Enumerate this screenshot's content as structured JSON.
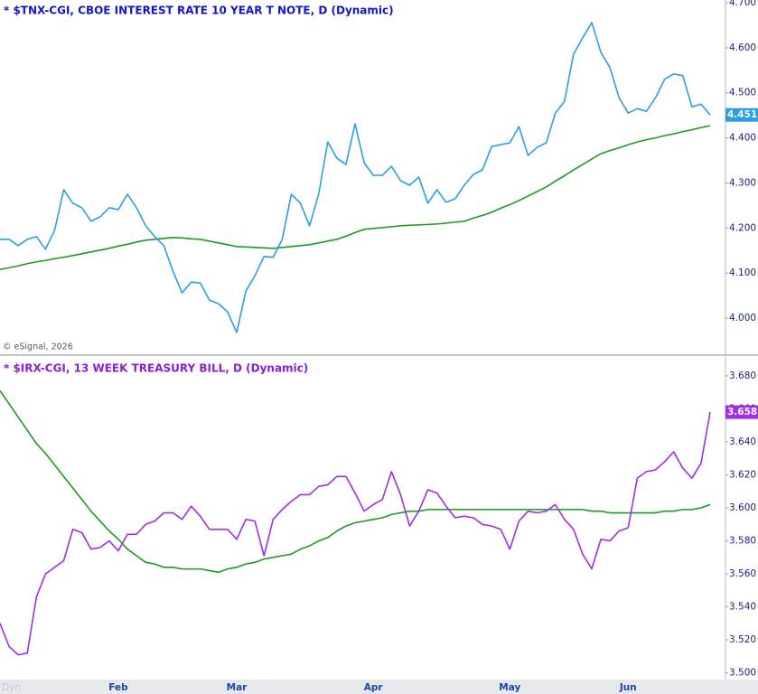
{
  "chart_data": [
    {
      "type": "line",
      "title": "* $TNX-CGI, CBOE INTEREST RATE 10 YEAR T NOTE, D (Dynamic)",
      "credit": "© eSignal, 2026",
      "ylim": [
        3.92,
        4.706
      ],
      "yticks": [
        {
          "value": 4.0,
          "label": "4.000"
        },
        {
          "value": 4.1,
          "label": "4.100"
        },
        {
          "value": 4.2,
          "label": "4.200"
        },
        {
          "value": 4.3,
          "label": "4.300"
        },
        {
          "value": 4.4,
          "label": "4.400"
        },
        {
          "value": 4.5,
          "label": "4.500"
        },
        {
          "value": 4.6,
          "label": "4.600"
        },
        {
          "value": 4.7,
          "label": "4.700"
        }
      ],
      "series": [
        {
          "color": "#2b9fe2",
          "tag": true,
          "values": [
            4.175,
            4.175,
            4.161,
            4.175,
            4.181,
            4.153,
            4.195,
            4.285,
            4.255,
            4.245,
            4.215,
            4.225,
            4.245,
            4.241,
            4.275,
            4.245,
            4.205,
            4.181,
            4.161,
            4.104,
            4.056,
            4.08,
            4.078,
            4.04,
            4.032,
            4.014,
            3.968,
            4.06,
            4.094,
            4.137,
            4.135,
            4.175,
            4.275,
            4.255,
            4.205,
            4.275,
            4.391,
            4.355,
            4.341,
            4.431,
            4.345,
            4.317,
            4.317,
            4.337,
            4.305,
            4.295,
            4.313,
            4.255,
            4.285,
            4.257,
            4.265,
            4.295,
            4.319,
            4.329,
            4.381,
            4.385,
            4.389,
            4.425,
            4.361,
            4.379,
            4.389,
            4.455,
            4.481,
            4.586,
            4.622,
            4.656,
            4.59,
            4.556,
            4.489,
            4.455,
            4.465,
            4.459,
            4.489,
            4.53,
            4.542,
            4.538,
            4.469,
            4.475,
            4.451
          ]
        },
        {
          "color": "#1e9a1e",
          "tag": false,
          "values": [
            4.108,
            4.112,
            4.116,
            4.121,
            4.125,
            4.128,
            4.132,
            4.135,
            4.139,
            4.143,
            4.147,
            4.151,
            4.155,
            4.16,
            4.164,
            4.169,
            4.173,
            4.175,
            4.177,
            4.179,
            4.178,
            4.176,
            4.175,
            4.171,
            4.167,
            4.163,
            4.159,
            4.158,
            4.157,
            4.156,
            4.155,
            4.157,
            4.159,
            4.161,
            4.163,
            4.167,
            4.171,
            4.175,
            4.182,
            4.19,
            4.197,
            4.199,
            4.201,
            4.203,
            4.205,
            4.206,
            4.207,
            4.208,
            4.209,
            4.211,
            4.213,
            4.215,
            4.222,
            4.228,
            4.235,
            4.244,
            4.252,
            4.261,
            4.271,
            4.281,
            4.291,
            4.304,
            4.316,
            4.329,
            4.341,
            4.353,
            4.365,
            4.372,
            4.378,
            4.385,
            4.391,
            4.396,
            4.4,
            4.405,
            4.409,
            4.414,
            4.418,
            4.423,
            4.427
          ]
        }
      ]
    },
    {
      "type": "line",
      "title": "* $IRX-CGI, 13 WEEK TREASURY BILL, D (Dynamic)",
      "badge": "Dyn",
      "categories": [
        null,
        null,
        null,
        null,
        null,
        null,
        null,
        null,
        null,
        null,
        null,
        null,
        null,
        "Feb",
        null,
        null,
        null,
        null,
        null,
        null,
        null,
        null,
        null,
        null,
        null,
        null,
        "Mar",
        null,
        null,
        null,
        null,
        null,
        null,
        null,
        null,
        null,
        null,
        null,
        null,
        null,
        null,
        "Apr",
        null,
        null,
        null,
        null,
        null,
        null,
        null,
        null,
        null,
        null,
        null,
        null,
        null,
        null,
        "May",
        null,
        null,
        null,
        null,
        null,
        null,
        null,
        null,
        null,
        null,
        null,
        null,
        "Jun",
        null,
        null,
        null,
        null,
        null,
        null,
        null,
        null,
        null
      ],
      "ylim": [
        3.496,
        3.692
      ],
      "yticks": [
        {
          "value": 3.5,
          "label": "3.500"
        },
        {
          "value": 3.52,
          "label": "3.520"
        },
        {
          "value": 3.54,
          "label": "3.540"
        },
        {
          "value": 3.56,
          "label": "3.560"
        },
        {
          "value": 3.58,
          "label": "3.580"
        },
        {
          "value": 3.6,
          "label": "3.600"
        },
        {
          "value": 3.62,
          "label": "3.620"
        },
        {
          "value": 3.64,
          "label": "3.640"
        },
        {
          "value": 3.66,
          "label": "3.660"
        },
        {
          "value": 3.68,
          "label": "3.680"
        }
      ],
      "series": [
        {
          "color": "#a02ee6",
          "tag": true,
          "values": [
            3.53,
            3.516,
            3.511,
            3.512,
            3.546,
            3.56,
            3.564,
            3.568,
            3.587,
            3.585,
            3.575,
            3.576,
            3.58,
            3.574,
            3.584,
            3.584,
            3.59,
            3.592,
            3.597,
            3.597,
            3.593,
            3.601,
            3.595,
            3.587,
            3.587,
            3.587,
            3.581,
            3.593,
            3.592,
            3.571,
            3.593,
            3.599,
            3.604,
            3.608,
            3.608,
            3.613,
            3.614,
            3.619,
            3.619,
            3.609,
            3.598,
            3.602,
            3.605,
            3.622,
            3.608,
            3.589,
            3.598,
            3.611,
            3.609,
            3.601,
            3.594,
            3.595,
            3.594,
            3.59,
            3.589,
            3.587,
            3.575,
            3.592,
            3.598,
            3.597,
            3.598,
            3.602,
            3.593,
            3.587,
            3.572,
            3.563,
            3.581,
            3.58,
            3.586,
            3.588,
            3.618,
            3.622,
            3.623,
            3.628,
            3.634,
            3.624,
            3.618,
            3.627,
            3.658
          ]
        },
        {
          "color": "#1e9a1e",
          "tag": false,
          "values": [
            3.671,
            3.663,
            3.655,
            3.647,
            3.639,
            3.633,
            3.626,
            3.619,
            3.612,
            3.605,
            3.598,
            3.592,
            3.586,
            3.581,
            3.575,
            3.571,
            3.567,
            3.566,
            3.564,
            3.564,
            3.563,
            3.563,
            3.563,
            3.562,
            3.561,
            3.563,
            3.564,
            3.566,
            3.567,
            3.569,
            3.57,
            3.571,
            3.572,
            3.575,
            3.577,
            3.58,
            3.582,
            3.586,
            3.589,
            3.591,
            3.592,
            3.593,
            3.594,
            3.596,
            3.597,
            3.598,
            3.598,
            3.599,
            3.599,
            3.599,
            3.599,
            3.599,
            3.599,
            3.599,
            3.599,
            3.599,
            3.599,
            3.599,
            3.599,
            3.599,
            3.599,
            3.599,
            3.599,
            3.599,
            3.599,
            3.598,
            3.598,
            3.597,
            3.597,
            3.597,
            3.597,
            3.597,
            3.597,
            3.598,
            3.598,
            3.599,
            3.599,
            3.6,
            3.602
          ]
        }
      ]
    }
  ]
}
